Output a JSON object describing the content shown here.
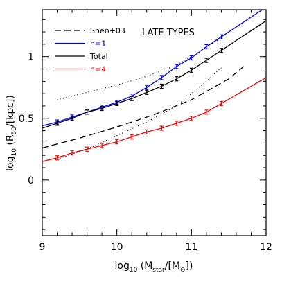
{
  "chart_data": {
    "type": "line",
    "title": "",
    "annotation": "LATE TYPES",
    "xlabel_parts": {
      "pre": "log",
      "sub1": "10",
      "mid": " (M",
      "sub2": "star",
      "post": "/[M",
      "sub3": "⊙",
      "end": "])"
    },
    "ylabel_parts": {
      "pre": "log",
      "sub1": "10",
      "mid": " (R",
      "sub2": "50",
      "post": "/[kpc])"
    },
    "xlim": [
      9,
      12
    ],
    "ylim": [
      -0.45,
      1.38
    ],
    "x_ticks": [
      9,
      10,
      11,
      12
    ],
    "x_tick_labels": [
      "9",
      "10",
      "11",
      "12"
    ],
    "y_ticks": [
      0,
      0.5,
      1
    ],
    "y_tick_labels": [
      "0",
      "0.5",
      "1"
    ],
    "grid": false,
    "legend_placement": "top-left",
    "legend": [
      {
        "label": "Shen+03",
        "color": "#000000",
        "dash": "dashed"
      },
      {
        "label": "n=1",
        "color": "#0000ff",
        "dash": "solid"
      },
      {
        "label": "Total",
        "color": "#000000",
        "dash": "solid"
      },
      {
        "label": "n=4",
        "color": "#ff0000",
        "dash": "solid"
      }
    ],
    "series": [
      {
        "name": "n=1",
        "color": "#0000ff",
        "dash": "solid",
        "x": [
          9.0,
          9.2,
          9.4,
          9.6,
          9.8,
          10.0,
          10.2,
          10.4,
          10.6,
          10.8,
          11.0,
          11.2,
          11.4,
          11.6,
          11.8,
          12.0
        ],
        "y": [
          0.44,
          0.47,
          0.51,
          0.55,
          0.59,
          0.63,
          0.68,
          0.75,
          0.83,
          0.92,
          0.99,
          1.08,
          1.16,
          1.24,
          1.32,
          1.4
        ],
        "err_x": [
          9.2,
          9.4,
          9.6,
          9.8,
          10.0,
          10.2,
          10.4,
          10.6,
          10.8,
          11.0,
          11.2,
          11.4
        ]
      },
      {
        "name": "Total",
        "color": "#000000",
        "dash": "solid",
        "x": [
          9.0,
          9.2,
          9.4,
          9.6,
          9.8,
          10.0,
          10.2,
          10.4,
          10.6,
          10.8,
          11.0,
          11.2,
          11.4,
          11.6,
          11.8,
          12.0
        ],
        "y": [
          0.42,
          0.46,
          0.5,
          0.55,
          0.58,
          0.62,
          0.66,
          0.71,
          0.76,
          0.82,
          0.89,
          0.97,
          1.05,
          1.13,
          1.21,
          1.29
        ],
        "err_x": [
          9.2,
          9.4,
          9.6,
          9.8,
          10.0,
          10.2,
          10.4,
          10.6,
          10.8,
          11.0,
          11.2,
          11.4
        ]
      },
      {
        "name": "n=4",
        "color": "#ff0000",
        "dash": "solid",
        "x": [
          9.0,
          9.2,
          9.4,
          9.6,
          9.8,
          10.0,
          10.2,
          10.4,
          10.6,
          10.8,
          11.0,
          11.2,
          11.4,
          11.6,
          11.8,
          12.0
        ],
        "y": [
          0.15,
          0.18,
          0.22,
          0.25,
          0.28,
          0.31,
          0.35,
          0.39,
          0.42,
          0.46,
          0.5,
          0.55,
          0.62,
          0.69,
          0.76,
          0.83
        ],
        "err_x": [
          9.2,
          9.4,
          9.6,
          9.8,
          10.0,
          10.2,
          10.4,
          10.6,
          10.8,
          11.0,
          11.2,
          11.4
        ]
      },
      {
        "name": "Shen+03",
        "color": "#000000",
        "dash": "dashed",
        "x": [
          9.0,
          9.5,
          10.0,
          10.5,
          11.0,
          11.5,
          11.7
        ],
        "y": [
          0.26,
          0.34,
          0.43,
          0.53,
          0.65,
          0.82,
          0.92
        ]
      },
      {
        "color": "#000000",
        "dash": "dotted",
        "x": [
          9.2,
          9.6,
          10.0,
          10.4,
          10.8,
          11.0,
          11.2,
          11.4
        ],
        "y": [
          0.65,
          0.71,
          0.77,
          0.84,
          0.93,
          1.0,
          1.08,
          1.15
        ]
      },
      {
        "color": "#000000",
        "dash": "dotted",
        "x": [
          9.2,
          9.6,
          10.0,
          10.4,
          10.8,
          11.0,
          11.2,
          11.4
        ],
        "y": [
          0.17,
          0.25,
          0.36,
          0.47,
          0.6,
          0.7,
          0.8,
          0.91
        ]
      }
    ]
  }
}
